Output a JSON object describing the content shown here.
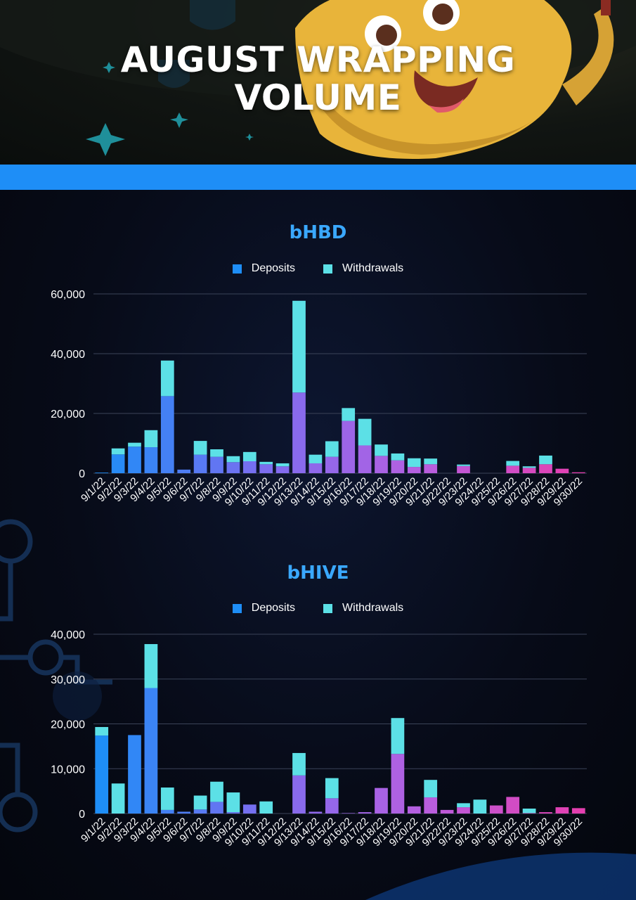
{
  "header": {
    "title_line1": "AUGUST WRAPPING",
    "title_line2": "VOLUME"
  },
  "colors": {
    "accent_bar": "#1e8ef7",
    "title_blue": "#3aa8ff",
    "deposits_swatch": "#1e8ef7",
    "withdrawals_swatch": "#5ce0e6",
    "withdrawal_bar": "#5ce0e6",
    "deposit_gradient": [
      "#1e8ef7",
      "#7b6df0",
      "#b65fe0",
      "#e43fb0"
    ],
    "grid": "#3b4358"
  },
  "chart_data": [
    {
      "type": "bar",
      "stacked": true,
      "title": "bHBD",
      "legend": [
        "Deposits",
        "Withdrawals"
      ],
      "legend_position": "top-center",
      "grid": true,
      "ylim": [
        0,
        60000
      ],
      "yticks": [
        "0",
        "20,000",
        "40,000",
        "60,000"
      ],
      "categories": [
        "9/1/22",
        "9/2/22",
        "9/3/22",
        "9/4/22",
        "9/5/22",
        "9/6/22",
        "9/7/22",
        "9/8/22",
        "9/9/22",
        "9/10/22",
        "9/11/22",
        "9/12/22",
        "9/13/22",
        "9/14/22",
        "9/15/22",
        "9/16/22",
        "9/17/22",
        "9/18/22",
        "9/19/22",
        "9/20/22",
        "9/21/22",
        "9/22/22",
        "9/23/22",
        "9/24/22",
        "9/25/22",
        "9/26/22",
        "9/27/22",
        "9/28/22",
        "9/29/22",
        "9/30/22"
      ],
      "series": [
        {
          "name": "Deposits",
          "values": [
            200,
            6300,
            8900,
            8700,
            25800,
            1200,
            6200,
            5500,
            3700,
            4000,
            3000,
            2300,
            27000,
            3300,
            5500,
            17500,
            9300,
            5800,
            4300,
            2100,
            3000,
            0,
            2400,
            0,
            0,
            2500,
            1800,
            3000,
            1500,
            300
          ]
        },
        {
          "name": "Withdrawals",
          "values": [
            0,
            2000,
            1300,
            5700,
            11900,
            0,
            4600,
            2500,
            2000,
            3100,
            800,
            1000,
            30700,
            2900,
            5200,
            4300,
            8900,
            3800,
            2300,
            2900,
            1900,
            0,
            500,
            0,
            0,
            1600,
            500,
            2900,
            0,
            0
          ]
        }
      ]
    },
    {
      "type": "bar",
      "stacked": true,
      "title": "bHIVE",
      "legend": [
        "Deposits",
        "Withdrawals"
      ],
      "legend_position": "top-center",
      "grid": true,
      "ylim": [
        0,
        40000
      ],
      "yticks": [
        "0",
        "10,000",
        "20,000",
        "30,000",
        "40,000"
      ],
      "categories": [
        "9/1/22",
        "9/2/22",
        "9/3/22",
        "9/4/22",
        "9/5/22",
        "9/6/22",
        "9/7/22",
        "9/8/22",
        "9/9/22",
        "9/10/22",
        "9/11/22",
        "9/12/22",
        "9/13/22",
        "9/14/22",
        "9/15/22",
        "9/16/22",
        "9/17/22",
        "9/18/22",
        "9/19/22",
        "9/20/22",
        "9/21/22",
        "9/22/22",
        "9/23/22",
        "9/24/22",
        "9/25/22",
        "9/26/22",
        "9/27/22",
        "9/28/22",
        "9/29/22",
        "9/30/22"
      ],
      "series": [
        {
          "name": "Deposits",
          "values": [
            17400,
            0,
            17500,
            28000,
            800,
            400,
            900,
            2600,
            300,
            2000,
            0,
            0,
            8500,
            400,
            3400,
            100,
            300,
            5700,
            13300,
            1600,
            3600,
            800,
            1400,
            0,
            1800,
            3700,
            100,
            300,
            1400,
            1200
          ]
        },
        {
          "name": "Withdrawals",
          "values": [
            1900,
            6700,
            0,
            9800,
            5000,
            0,
            3100,
            4500,
            4400,
            0,
            2700,
            0,
            5000,
            0,
            4500,
            0,
            0,
            0,
            8000,
            0,
            3900,
            0,
            900,
            3100,
            0,
            0,
            1000,
            0,
            0,
            0
          ]
        }
      ]
    }
  ]
}
